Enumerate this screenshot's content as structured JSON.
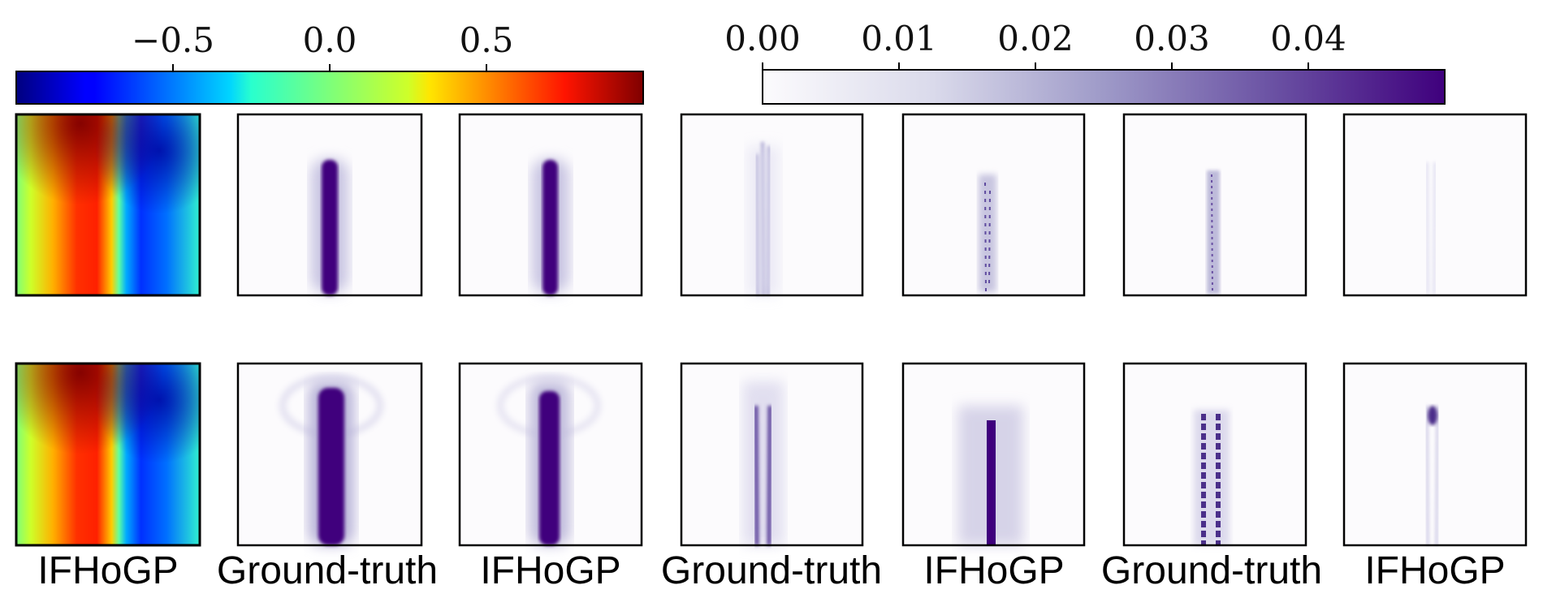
{
  "chart_data": [
    {
      "type": "heatmap",
      "name": "field",
      "colormap": "jet",
      "colorbar": {
        "range": [
          -1.0,
          1.0
        ],
        "ticks": [
          -0.5,
          0.0,
          0.5
        ],
        "tick_labels": [
          "−0.5",
          "0.0",
          "0.5"
        ],
        "placement": "top-left"
      }
    },
    {
      "type": "heatmap",
      "name": "magnitude",
      "colormap": "purples",
      "colorbar": {
        "range": [
          0.0,
          0.05
        ],
        "ticks": [
          0.0,
          0.01,
          0.02,
          0.03,
          0.04
        ],
        "tick_labels": [
          "0.00",
          "0.01",
          "0.02",
          "0.03",
          "0.04"
        ],
        "placement": "top-right"
      }
    }
  ],
  "panels": {
    "column_labels": [
      "IFHoGP",
      "Ground-truth",
      "IFHoGP",
      "Ground-truth",
      "IFHoGP",
      "Ground-truth",
      "IFHoGP"
    ]
  },
  "colors": {
    "deep_purple": "#3f007d",
    "frame": "#000000"
  }
}
